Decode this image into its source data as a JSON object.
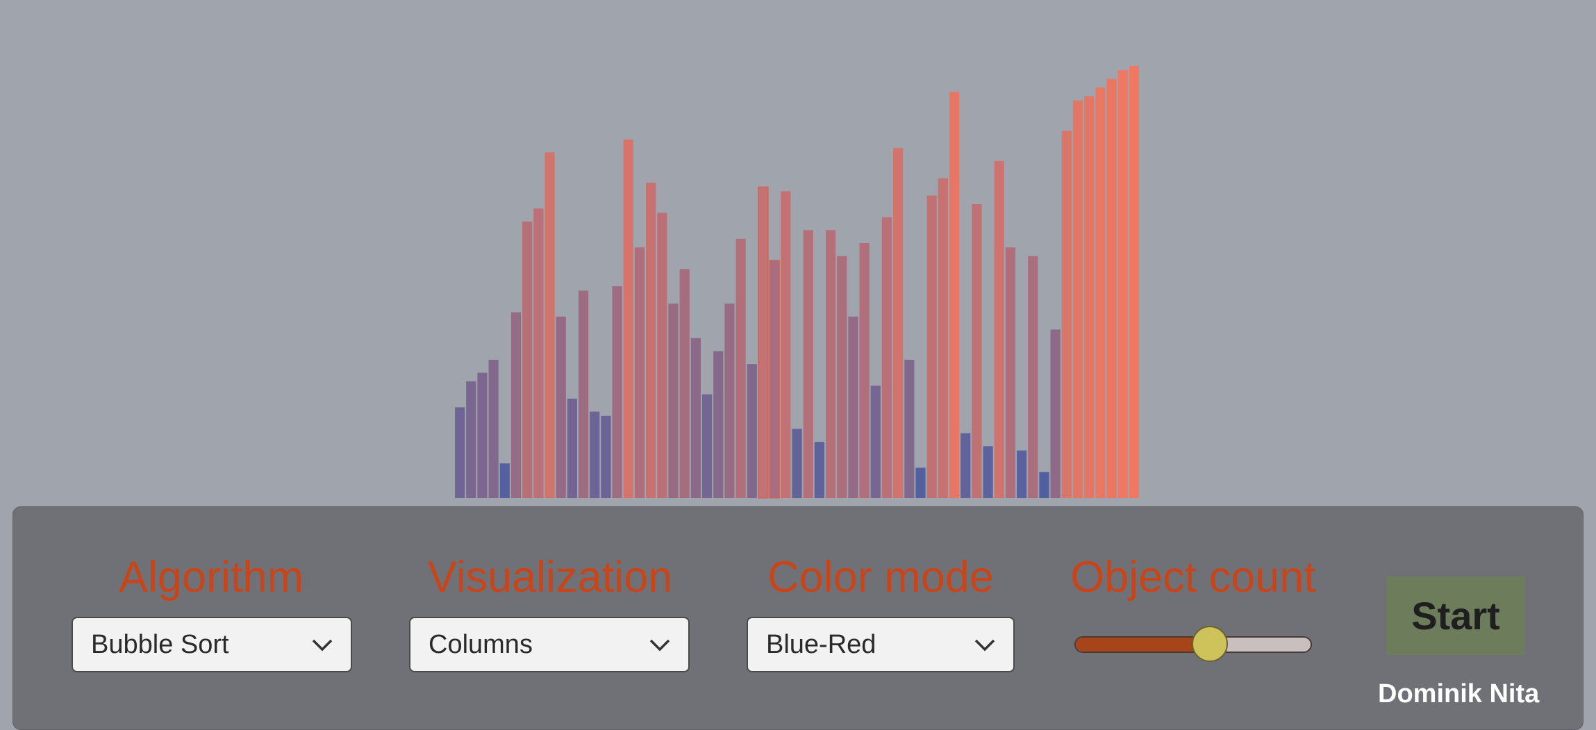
{
  "controls": {
    "algorithm": {
      "label": "Algorithm",
      "value": "Bubble Sort"
    },
    "visualization": {
      "label": "Visualization",
      "value": "Columns"
    },
    "color_mode": {
      "label": "Color mode",
      "value": "Blue-Red"
    },
    "object_count": {
      "label": "Object count",
      "value_fraction": 0.57
    },
    "start_label": "Start"
  },
  "author": "Dominik Nita",
  "colors": {
    "background": "#a0a4ad",
    "panel": "#707176",
    "label_accent": "#c8451a",
    "low_bar": "#3f5ea8",
    "high_bar": "#f07860",
    "start_button": "#6d7d5b",
    "slider_thumb": "#cdc35a",
    "slider_fill": "#a8441a"
  },
  "icons": {
    "dropdown": "chevron-down-icon"
  },
  "chart_data": {
    "type": "bar",
    "ylim": [
      0,
      100
    ],
    "values": [
      21,
      27,
      29,
      32,
      8,
      43,
      64,
      67,
      80,
      42,
      23,
      48,
      20,
      19,
      49,
      83,
      58,
      73,
      66,
      45,
      53,
      37,
      24,
      34,
      45,
      60,
      31,
      72,
      55,
      71,
      16,
      62,
      13,
      62,
      56,
      42,
      59,
      26,
      65,
      81,
      32,
      7,
      70,
      74,
      94,
      15,
      68,
      12,
      78,
      58,
      11,
      56,
      6,
      39,
      85,
      92,
      93,
      95,
      97,
      99,
      100
    ],
    "highlight_values": [
      72,
      55
    ]
  }
}
